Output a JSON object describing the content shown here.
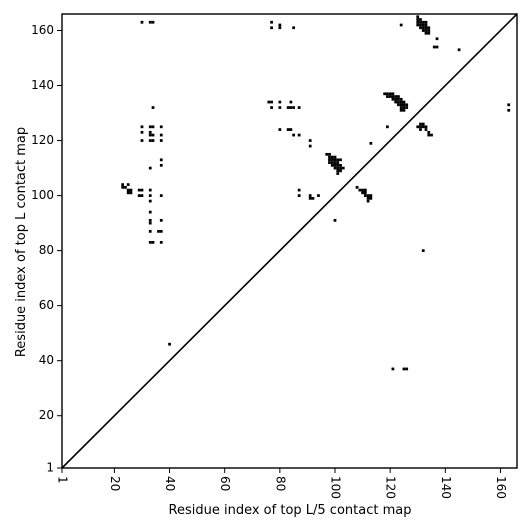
{
  "chart_data": {
    "type": "scatter",
    "title": "",
    "xlabel": "Residue index of top L/5 contact map",
    "ylabel": "Residue index of top L contact map",
    "xlim": [
      1,
      166
    ],
    "ylim": [
      1,
      166
    ],
    "xticks": [
      1,
      20,
      40,
      60,
      80,
      100,
      120,
      140,
      160
    ],
    "yticks": [
      1,
      20,
      40,
      60,
      80,
      100,
      120,
      140,
      160
    ],
    "xtick_labels": [
      "1",
      "20",
      "40",
      "60",
      "80",
      "100",
      "120",
      "140",
      "160"
    ],
    "ytick_labels": [
      "1",
      "20",
      "40",
      "60",
      "80",
      "100",
      "120",
      "140",
      "160"
    ],
    "xtick_label_rotation": -90,
    "grid": false,
    "diagonal": {
      "from": [
        1,
        1
      ],
      "to": [
        166,
        166
      ]
    },
    "marker_color": "#000000",
    "series": [
      {
        "points": [
          [
            30,
            163
          ],
          [
            33,
            163
          ],
          [
            34,
            163
          ],
          [
            77,
            161
          ],
          [
            77,
            163
          ],
          [
            80,
            161
          ],
          [
            80,
            162
          ],
          [
            85,
            161
          ],
          [
            124,
            162
          ],
          [
            145,
            153
          ],
          [
            137,
            157
          ],
          [
            136,
            154
          ],
          [
            137,
            154
          ],
          [
            130,
            165
          ],
          [
            130,
            164
          ],
          [
            131,
            164
          ],
          [
            130,
            163
          ],
          [
            131,
            163
          ],
          [
            132,
            163
          ],
          [
            133,
            163
          ],
          [
            130,
            162
          ],
          [
            131,
            162
          ],
          [
            132,
            162
          ],
          [
            133,
            162
          ],
          [
            131,
            161
          ],
          [
            132,
            161
          ],
          [
            133,
            161
          ],
          [
            134,
            161
          ],
          [
            132,
            160
          ],
          [
            133,
            160
          ],
          [
            134,
            160
          ],
          [
            133,
            159
          ],
          [
            134,
            159
          ],
          [
            118,
            137
          ],
          [
            119,
            137
          ],
          [
            120,
            137
          ],
          [
            121,
            137
          ],
          [
            119,
            136
          ],
          [
            120,
            136
          ],
          [
            121,
            136
          ],
          [
            122,
            136
          ],
          [
            123,
            136
          ],
          [
            121,
            135
          ],
          [
            122,
            135
          ],
          [
            123,
            135
          ],
          [
            124,
            135
          ],
          [
            122,
            134
          ],
          [
            123,
            134
          ],
          [
            124,
            134
          ],
          [
            125,
            134
          ],
          [
            123,
            133
          ],
          [
            124,
            133
          ],
          [
            125,
            133
          ],
          [
            126,
            133
          ],
          [
            124,
            132
          ],
          [
            125,
            132
          ],
          [
            126,
            132
          ],
          [
            124,
            131
          ],
          [
            125,
            131
          ],
          [
            163,
            133
          ],
          [
            163,
            131
          ],
          [
            131,
            126
          ],
          [
            132,
            126
          ],
          [
            130,
            125
          ],
          [
            131,
            125
          ],
          [
            132,
            125
          ],
          [
            133,
            125
          ],
          [
            131,
            124
          ],
          [
            133,
            124
          ],
          [
            134,
            123
          ],
          [
            134,
            122
          ],
          [
            135,
            122
          ],
          [
            119,
            125
          ],
          [
            113,
            119
          ],
          [
            76,
            134
          ],
          [
            77,
            134
          ],
          [
            80,
            134
          ],
          [
            84,
            134
          ],
          [
            77,
            132
          ],
          [
            80,
            132
          ],
          [
            83,
            132
          ],
          [
            84,
            132
          ],
          [
            85,
            132
          ],
          [
            87,
            132
          ],
          [
            80,
            124
          ],
          [
            83,
            124
          ],
          [
            84,
            124
          ],
          [
            85,
            122
          ],
          [
            87,
            122
          ],
          [
            91,
            120
          ],
          [
            91,
            118
          ],
          [
            34,
            132
          ],
          [
            30,
            125
          ],
          [
            33,
            125
          ],
          [
            34,
            125
          ],
          [
            37,
            125
          ],
          [
            30,
            123
          ],
          [
            33,
            123
          ],
          [
            33,
            122
          ],
          [
            34,
            122
          ],
          [
            37,
            122
          ],
          [
            30,
            120
          ],
          [
            33,
            120
          ],
          [
            34,
            120
          ],
          [
            37,
            120
          ],
          [
            37,
            113
          ],
          [
            37,
            111
          ],
          [
            33,
            110
          ],
          [
            97,
            115
          ],
          [
            98,
            115
          ],
          [
            98,
            114
          ],
          [
            99,
            114
          ],
          [
            100,
            114
          ],
          [
            98,
            113
          ],
          [
            99,
            113
          ],
          [
            100,
            113
          ],
          [
            101,
            113
          ],
          [
            102,
            113
          ],
          [
            98,
            112
          ],
          [
            99,
            112
          ],
          [
            100,
            112
          ],
          [
            101,
            112
          ],
          [
            99,
            111
          ],
          [
            100,
            111
          ],
          [
            101,
            111
          ],
          [
            102,
            111
          ],
          [
            100,
            110
          ],
          [
            101,
            110
          ],
          [
            102,
            110
          ],
          [
            103,
            110
          ],
          [
            101,
            109
          ],
          [
            102,
            109
          ],
          [
            101,
            108
          ],
          [
            23,
            104
          ],
          [
            23,
            103
          ],
          [
            24,
            103
          ],
          [
            25,
            104
          ],
          [
            25,
            102
          ],
          [
            26,
            102
          ],
          [
            25,
            101
          ],
          [
            26,
            101
          ],
          [
            29,
            102
          ],
          [
            30,
            102
          ],
          [
            33,
            102
          ],
          [
            29,
            100
          ],
          [
            30,
            100
          ],
          [
            33,
            100
          ],
          [
            37,
            100
          ],
          [
            33,
            98
          ],
          [
            87,
            102
          ],
          [
            87,
            100
          ],
          [
            91,
            100
          ],
          [
            94,
            100
          ],
          [
            91,
            99
          ],
          [
            92,
            99
          ],
          [
            108,
            103
          ],
          [
            109,
            102
          ],
          [
            110,
            102
          ],
          [
            111,
            102
          ],
          [
            110,
            101
          ],
          [
            111,
            101
          ],
          [
            111,
            100
          ],
          [
            112,
            100
          ],
          [
            113,
            100
          ],
          [
            112,
            99
          ],
          [
            113,
            99
          ],
          [
            112,
            98
          ],
          [
            33,
            94
          ],
          [
            33,
            91
          ],
          [
            37,
            91
          ],
          [
            33,
            90
          ],
          [
            33,
            87
          ],
          [
            36,
            87
          ],
          [
            37,
            87
          ],
          [
            33,
            83
          ],
          [
            34,
            83
          ],
          [
            37,
            83
          ],
          [
            100,
            91
          ],
          [
            132,
            80
          ],
          [
            40,
            46
          ],
          [
            121,
            37
          ],
          [
            125,
            37
          ],
          [
            126,
            37
          ]
        ]
      }
    ]
  }
}
